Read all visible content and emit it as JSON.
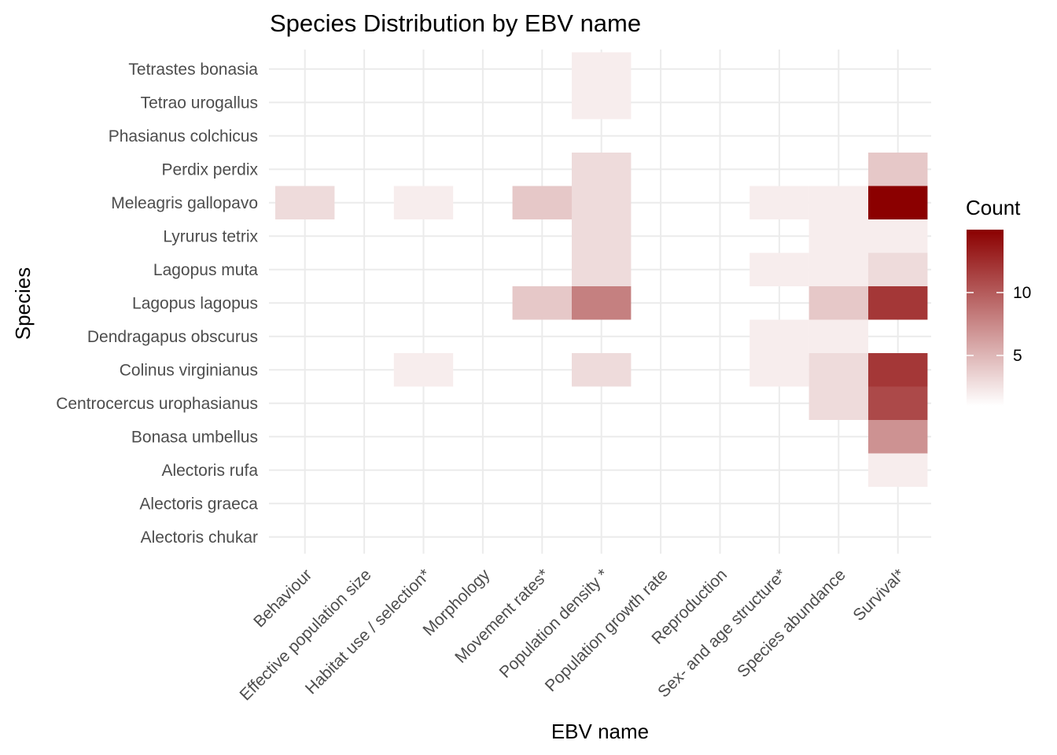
{
  "chart_data": {
    "type": "heatmap",
    "title": "Species Distribution by EBV name",
    "xlabel": "EBV name",
    "ylabel": "Species",
    "x_categories": [
      "Behaviour",
      "Effective population size",
      "Habitat use / selection*",
      "Morphology",
      "Movement rates*",
      "Population density *",
      "Population growth rate",
      "Reproduction",
      "Sex- and age structure*",
      "Species abundance",
      "Survival*"
    ],
    "y_categories": [
      "Alectoris chukar",
      "Alectoris graeca",
      "Alectoris rufa",
      "Bonasa umbellus",
      "Centrocercus urophasianus",
      "Colinus virginianus",
      "Dendragapus obscurus",
      "Lagopus lagopus",
      "Lagopus muta",
      "Lyrurus tetrix",
      "Meleagris gallopavo",
      "Perdix perdix",
      "Phasianus colchicus",
      "Tetrao urogallus",
      "Tetrastes bonasia"
    ],
    "cells": [
      {
        "x": "Population density *",
        "y": "Tetrastes bonasia",
        "value": 2
      },
      {
        "x": "Population density *",
        "y": "Tetrao urogallus",
        "value": 2
      },
      {
        "x": "Population density *",
        "y": "Perdix perdix",
        "value": 3
      },
      {
        "x": "Survival*",
        "y": "Perdix perdix",
        "value": 4
      },
      {
        "x": "Behaviour",
        "y": "Meleagris gallopavo",
        "value": 3
      },
      {
        "x": "Habitat use / selection*",
        "y": "Meleagris gallopavo",
        "value": 2
      },
      {
        "x": "Movement rates*",
        "y": "Meleagris gallopavo",
        "value": 4
      },
      {
        "x": "Population density *",
        "y": "Meleagris gallopavo",
        "value": 3
      },
      {
        "x": "Sex- and age structure*",
        "y": "Meleagris gallopavo",
        "value": 2
      },
      {
        "x": "Species abundance",
        "y": "Meleagris gallopavo",
        "value": 2
      },
      {
        "x": "Survival*",
        "y": "Meleagris gallopavo",
        "value": 15
      },
      {
        "x": "Population density *",
        "y": "Lyrurus tetrix",
        "value": 3
      },
      {
        "x": "Species abundance",
        "y": "Lyrurus tetrix",
        "value": 2
      },
      {
        "x": "Survival*",
        "y": "Lyrurus tetrix",
        "value": 2
      },
      {
        "x": "Population density *",
        "y": "Lagopus muta",
        "value": 3
      },
      {
        "x": "Sex- and age structure*",
        "y": "Lagopus muta",
        "value": 2
      },
      {
        "x": "Species abundance",
        "y": "Lagopus muta",
        "value": 2
      },
      {
        "x": "Survival*",
        "y": "Lagopus muta",
        "value": 3
      },
      {
        "x": "Movement rates*",
        "y": "Lagopus lagopus",
        "value": 4
      },
      {
        "x": "Population density *",
        "y": "Lagopus lagopus",
        "value": 8
      },
      {
        "x": "Species abundance",
        "y": "Lagopus lagopus",
        "value": 4
      },
      {
        "x": "Survival*",
        "y": "Lagopus lagopus",
        "value": 12
      },
      {
        "x": "Sex- and age structure*",
        "y": "Dendragapus obscurus",
        "value": 2
      },
      {
        "x": "Species abundance",
        "y": "Dendragapus obscurus",
        "value": 2
      },
      {
        "x": "Habitat use / selection*",
        "y": "Colinus virginianus",
        "value": 2
      },
      {
        "x": "Population density *",
        "y": "Colinus virginianus",
        "value": 3
      },
      {
        "x": "Sex- and age structure*",
        "y": "Colinus virginianus",
        "value": 2
      },
      {
        "x": "Species abundance",
        "y": "Colinus virginianus",
        "value": 3
      },
      {
        "x": "Survival*",
        "y": "Colinus virginianus",
        "value": 12
      },
      {
        "x": "Species abundance",
        "y": "Centrocercus urophasianus",
        "value": 3
      },
      {
        "x": "Survival*",
        "y": "Centrocercus urophasianus",
        "value": 11
      },
      {
        "x": "Survival*",
        "y": "Bonasa umbellus",
        "value": 7
      },
      {
        "x": "Survival*",
        "y": "Alectoris rufa",
        "value": 2
      }
    ],
    "legend": {
      "title": "Count",
      "ticks": [
        5,
        10
      ],
      "range": [
        1,
        15
      ],
      "color_low": "#ffffff",
      "color_high": "#8b0000",
      "position": "right"
    },
    "grid": true
  }
}
